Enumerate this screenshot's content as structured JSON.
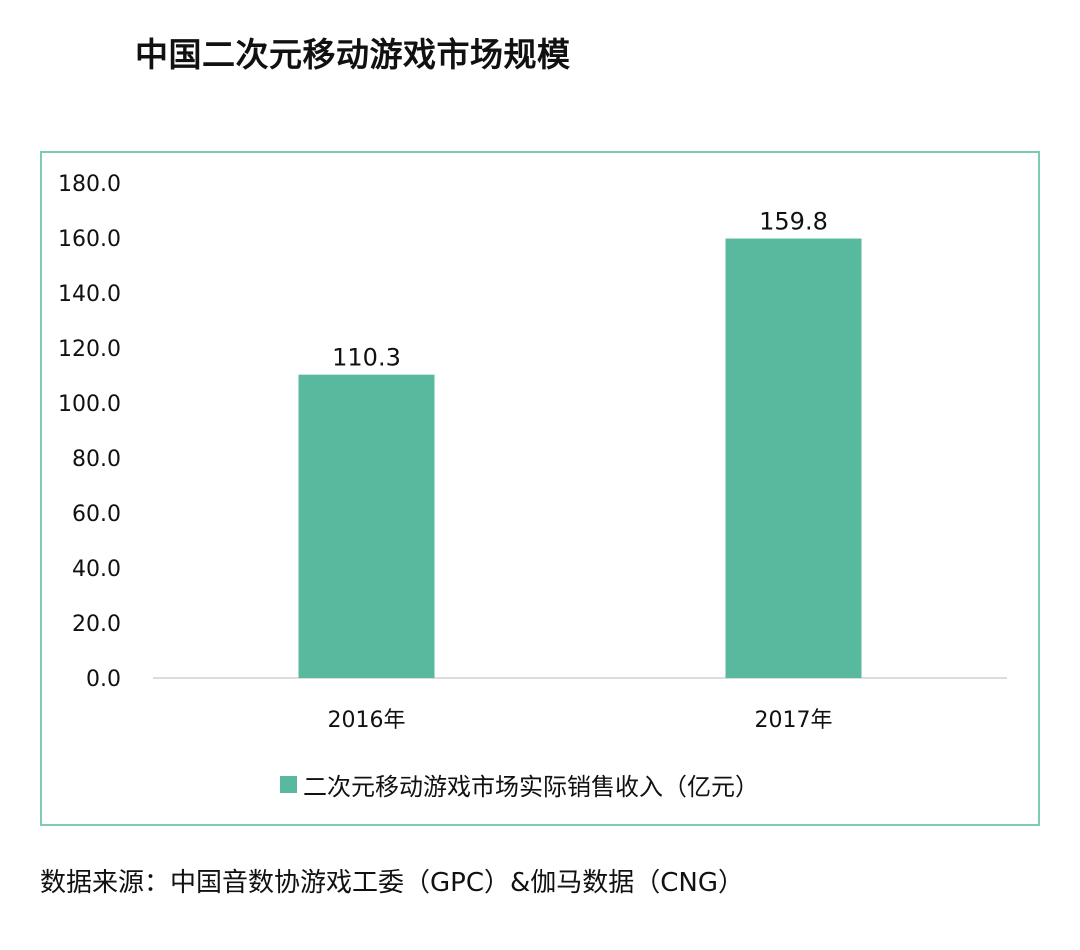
{
  "title": "中国二次元移动游戏市场规模",
  "colors": {
    "bar": "#58b99e",
    "frame": "#7fcab5",
    "axis": "#d0d0d0"
  },
  "chart_data": {
    "type": "bar",
    "categories": [
      "2016年",
      "2017年"
    ],
    "series": [
      {
        "name": "二次元移动游戏市场实际销售收入（亿元）",
        "values": [
          110.3,
          159.8
        ]
      }
    ],
    "data_labels": [
      "110.3",
      "159.8"
    ],
    "yticks": [
      "0.0",
      "20.0",
      "40.0",
      "60.0",
      "80.0",
      "100.0",
      "120.0",
      "140.0",
      "160.0",
      "180.0"
    ],
    "ylim": [
      0,
      180
    ],
    "grid": false,
    "legend": "bottom"
  },
  "source": "数据来源：中国音数协游戏工委（GPC）&伽马数据（CNG）"
}
